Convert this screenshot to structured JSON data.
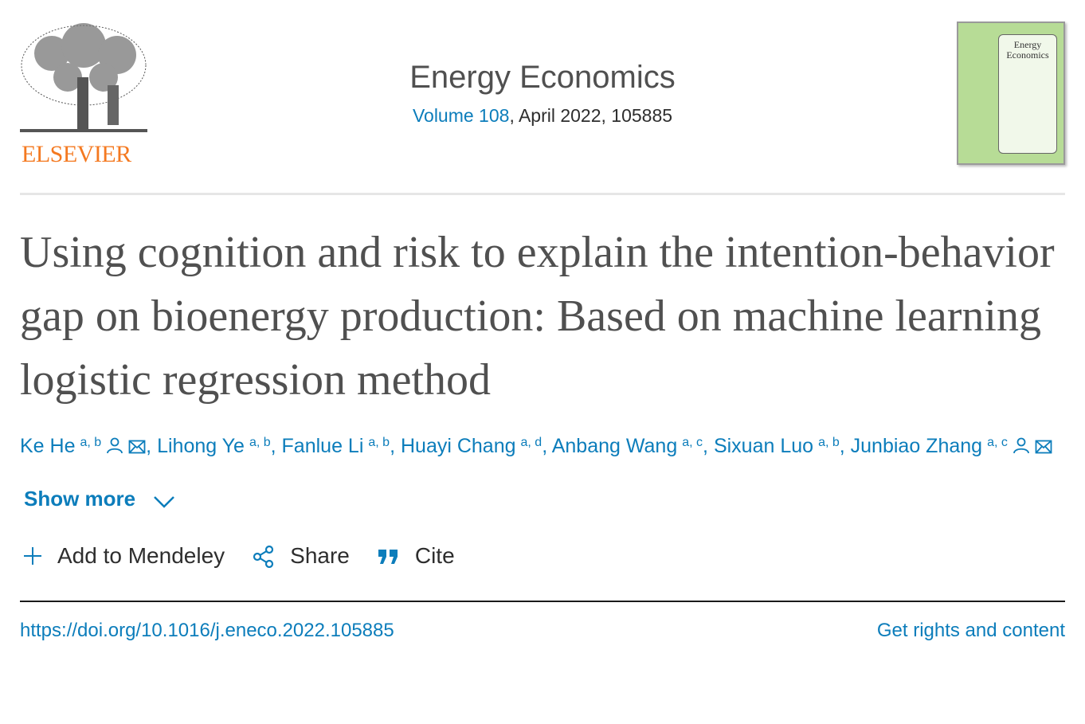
{
  "publisher": {
    "name": "ELSEVIER",
    "logo_color": "#f47920"
  },
  "journal": {
    "title": "Energy Economics",
    "volume_link": "Volume 108",
    "meta": ", April 2022, 105885",
    "cover_title_line1": "Energy",
    "cover_title_line2": "Economics"
  },
  "article": {
    "title": "Using cognition and risk to explain the intention-behavior gap on bioenergy production: Based on machine learning logistic regression method"
  },
  "authors": [
    {
      "name": "Ke He",
      "affil": "a, b",
      "person_icon": true,
      "email_icon": true
    },
    {
      "name": "Lihong Ye",
      "affil": "a, b"
    },
    {
      "name": "Fanlue Li",
      "affil": "a, b"
    },
    {
      "name": "Huayi Chang",
      "affil": "a, d"
    },
    {
      "name": "Anbang Wang",
      "affil": "a, c"
    },
    {
      "name": "Sixuan Luo",
      "affil": "a, b"
    },
    {
      "name": "Junbiao Zhang",
      "affil": "a, c",
      "person_icon": true,
      "email_icon": true
    }
  ],
  "show_more": "Show more",
  "actions": {
    "mendeley": "Add to Mendeley",
    "share": "Share",
    "cite": "Cite"
  },
  "footer": {
    "doi": "https://doi.org/10.1016/j.eneco.2022.105885",
    "rights": "Get rights and content"
  },
  "colors": {
    "link": "#0c7dbb",
    "title": "#505050",
    "cover": "#b7dc96"
  }
}
